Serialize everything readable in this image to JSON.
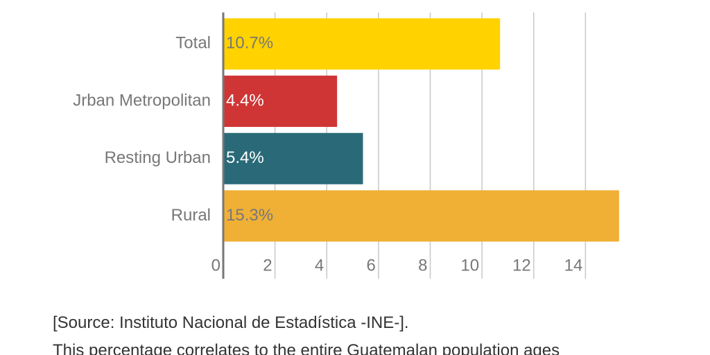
{
  "chart_data": {
    "type": "bar",
    "orientation": "horizontal",
    "categories": [
      "Total",
      "Jrban Metropolitan",
      "Resting Urban",
      "Rural"
    ],
    "values": [
      10.7,
      4.4,
      5.4,
      15.3
    ],
    "value_labels": [
      "10.7%",
      "4.4%",
      "5.4%",
      "15.3%"
    ],
    "colors": [
      "#ffd200",
      "#cf3535",
      "#2a6a78",
      "#f0b036"
    ],
    "value_label_colors": [
      "#777777",
      "#ffffff",
      "#ffffff",
      "#777777"
    ],
    "xlim": [
      0,
      16
    ],
    "xticks": [
      0,
      2,
      4,
      6,
      8,
      10,
      12,
      14
    ],
    "grid": true
  },
  "notes": [
    "[Source: Instituto Nacional de Estadística -INE-].",
    "This percentage correlates to the entire Guatemalan population ages"
  ]
}
